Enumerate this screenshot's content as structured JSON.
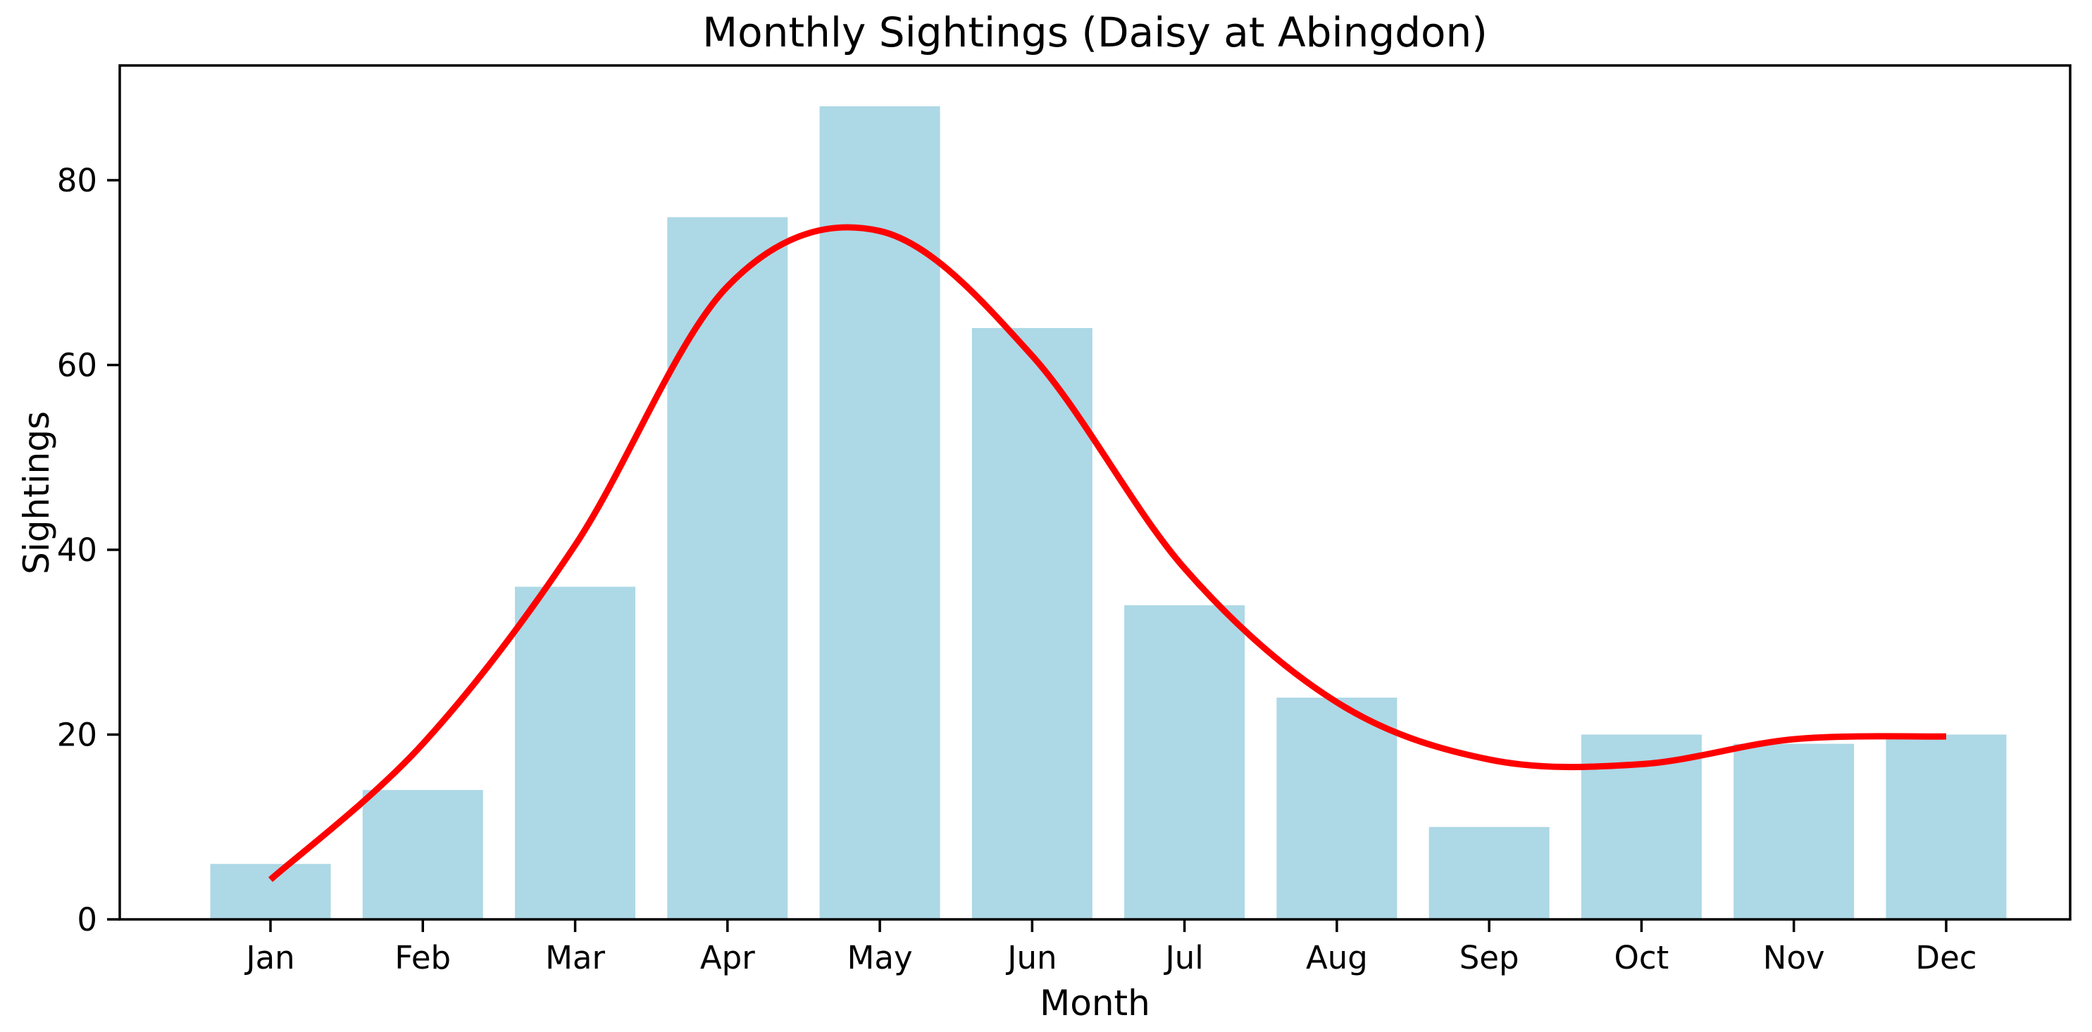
{
  "chart_data": {
    "type": "bar",
    "title": "Monthly Sightings (Daisy at Abingdon)",
    "xlabel": "Month",
    "ylabel": "Sightings",
    "categories": [
      "Jan",
      "Feb",
      "Mar",
      "Apr",
      "May",
      "Jun",
      "Jul",
      "Aug",
      "Sep",
      "Oct",
      "Nov",
      "Dec"
    ],
    "series": [
      {
        "name": "monthly-sightings-bars",
        "type": "bar",
        "color": "#ADD8E6",
        "values": [
          6,
          14,
          36,
          76,
          88,
          64,
          34,
          24,
          10,
          20,
          19,
          20
        ]
      },
      {
        "name": "smoothed-trend-line",
        "type": "line",
        "color": "#FF0000",
        "values": [
          4.3,
          19,
          40.5,
          68.5,
          74.5,
          61,
          38,
          23.5,
          17.3,
          16.8,
          19.5,
          19.8
        ]
      }
    ],
    "yticks": [
      0,
      20,
      40,
      60,
      80
    ],
    "ylim": [
      0,
      92.4
    ],
    "grid": false,
    "legend": "none",
    "background_color": "#FFFFFF",
    "text_color": "#000000",
    "spine_color": "#000000"
  }
}
